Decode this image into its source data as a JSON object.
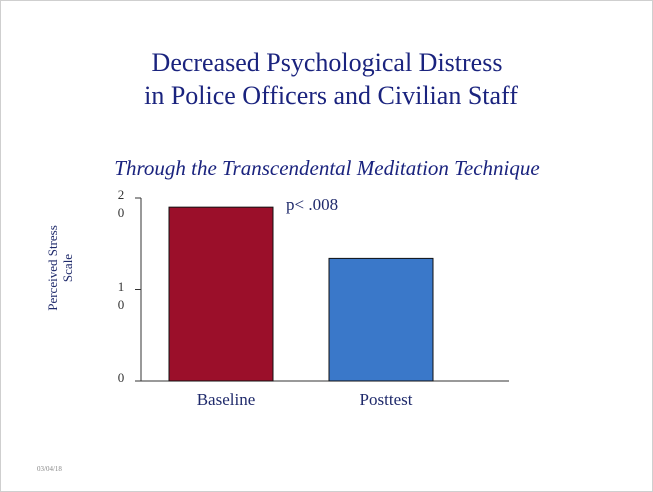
{
  "chart_data": {
    "type": "bar",
    "title": [
      "Decreased Psychological Distress",
      "in Police Officers and Civilian Staff"
    ],
    "subtitle": "Through the Transcendental Meditation Technique",
    "y_label": "Perceived Stress Scale",
    "annotation": "p< .008",
    "categories": [
      "Baseline",
      "Posttest"
    ],
    "values": [
      19,
      13.4
    ],
    "colors": [
      "#9b0f2a",
      "#3a78c9"
    ],
    "ylim": [
      0,
      20
    ],
    "yticks": [
      0,
      10,
      20
    ],
    "grid": false
  },
  "footer": {
    "date": "03/04/18"
  }
}
